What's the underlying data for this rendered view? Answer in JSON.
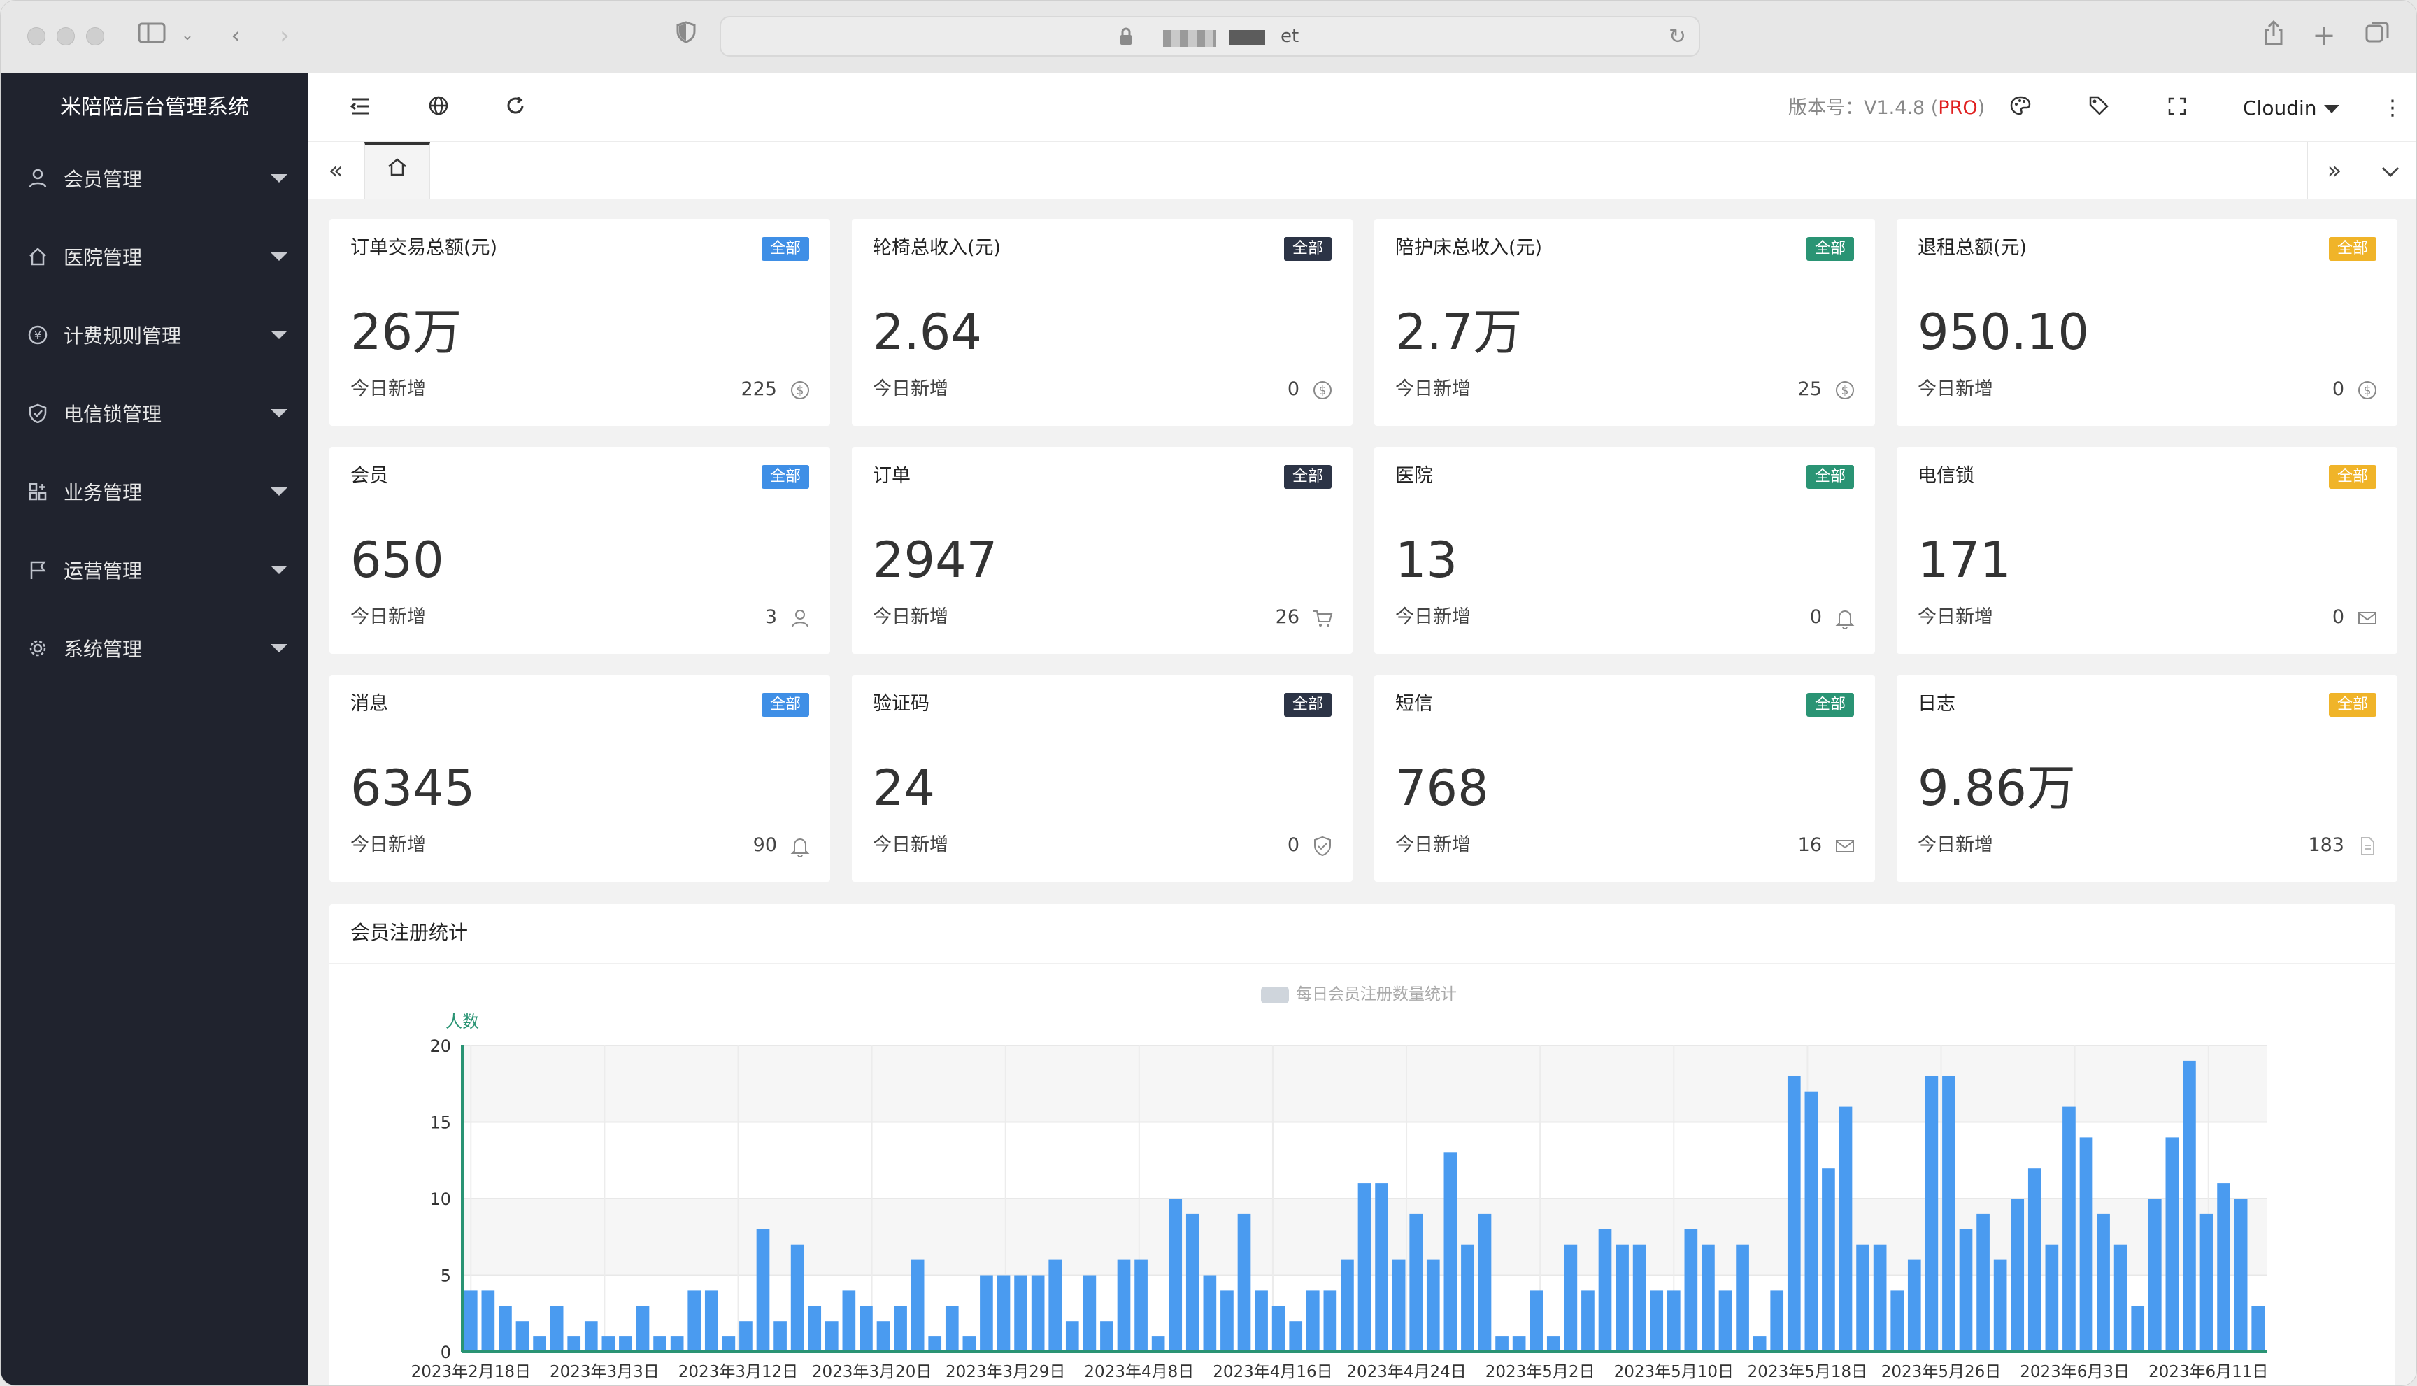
{
  "browser": {
    "url_visible": "et"
  },
  "sidebar": {
    "title": "米陪陪后台管理系统",
    "items": [
      {
        "label": "会员管理",
        "icon": "user-icon"
      },
      {
        "label": "医院管理",
        "icon": "home-icon"
      },
      {
        "label": "计费规则管理",
        "icon": "yen-icon"
      },
      {
        "label": "电信锁管理",
        "icon": "shield-icon"
      },
      {
        "label": "业务管理",
        "icon": "grid-icon"
      },
      {
        "label": "运营管理",
        "icon": "flag-icon"
      },
      {
        "label": "系统管理",
        "icon": "gear-icon"
      }
    ]
  },
  "header": {
    "version_label": "版本号：V1.4.8 (",
    "version_pro": "PRO",
    "version_close": ")",
    "user": "Cloudin"
  },
  "cards": [
    {
      "title": "订单交易总额(元)",
      "badge": "全部",
      "badge_color": "#3f8fe6",
      "value": "26万",
      "sub": "今日新增",
      "count": "225",
      "icon": "dollar-icon"
    },
    {
      "title": "轮椅总收入(元)",
      "badge": "全部",
      "badge_color": "#2c3446",
      "value": "2.64",
      "sub": "今日新增",
      "count": "0",
      "icon": "dollar-icon"
    },
    {
      "title": "陪护床总收入(元)",
      "badge": "全部",
      "badge_color": "#2a9474",
      "value": "2.7万",
      "sub": "今日新增",
      "count": "25",
      "icon": "dollar-icon"
    },
    {
      "title": "退租总额(元)",
      "badge": "全部",
      "badge_color": "#f0b429",
      "value": "950.10",
      "sub": "今日新增",
      "count": "0",
      "icon": "dollar-icon"
    },
    {
      "title": "会员",
      "badge": "全部",
      "badge_color": "#3f8fe6",
      "value": "650",
      "sub": "今日新增",
      "count": "3",
      "icon": "user-icon"
    },
    {
      "title": "订单",
      "badge": "全部",
      "badge_color": "#2c3446",
      "value": "2947",
      "sub": "今日新增",
      "count": "26",
      "icon": "cart-icon"
    },
    {
      "title": "医院",
      "badge": "全部",
      "badge_color": "#2a9474",
      "value": "13",
      "sub": "今日新增",
      "count": "0",
      "icon": "bell-icon"
    },
    {
      "title": "电信锁",
      "badge": "全部",
      "badge_color": "#f0b429",
      "value": "171",
      "sub": "今日新增",
      "count": "0",
      "icon": "mail-icon"
    },
    {
      "title": "消息",
      "badge": "全部",
      "badge_color": "#3f8fe6",
      "value": "6345",
      "sub": "今日新增",
      "count": "90",
      "icon": "bell-icon"
    },
    {
      "title": "验证码",
      "badge": "全部",
      "badge_color": "#2c3446",
      "value": "24",
      "sub": "今日新增",
      "count": "0",
      "icon": "shield-check-icon"
    },
    {
      "title": "短信",
      "badge": "全部",
      "badge_color": "#2a9474",
      "value": "768",
      "sub": "今日新增",
      "count": "16",
      "icon": "mail-icon"
    },
    {
      "title": "日志",
      "badge": "全部",
      "badge_color": "#f0b429",
      "value": "9.86万",
      "sub": "今日新增",
      "count": "183",
      "icon": "document-icon"
    }
  ],
  "panel": {
    "title": "会员注册统计"
  },
  "chart_data": {
    "type": "bar",
    "legend": "每日会员注册数量统计",
    "legend_position": "top-center",
    "ylabel": "人数",
    "ylim": [
      0,
      20
    ],
    "yticks": [
      0,
      5,
      10,
      15,
      20
    ],
    "grid": true,
    "bar_color": "#4a9bf0",
    "x_tick_labels": [
      "2023年2月18日",
      "2023年3月3日",
      "2023年3月12日",
      "2023年3月20日",
      "2023年3月29日",
      "2023年4月8日",
      "2023年4月16日",
      "2023年4月24日",
      "2023年5月2日",
      "2023年5月10日",
      "2023年5月18日",
      "2023年5月26日",
      "2023年6月3日",
      "2023年6月11日"
    ],
    "values": [
      4,
      4,
      3,
      2,
      1,
      3,
      1,
      2,
      1,
      1,
      3,
      1,
      1,
      4,
      4,
      1,
      2,
      8,
      2,
      7,
      3,
      2,
      4,
      3,
      2,
      3,
      6,
      1,
      3,
      1,
      5,
      5,
      5,
      5,
      6,
      2,
      5,
      2,
      6,
      6,
      1,
      10,
      9,
      5,
      4,
      9,
      4,
      3,
      2,
      4,
      4,
      6,
      11,
      11,
      6,
      9,
      6,
      13,
      7,
      9,
      1,
      1,
      4,
      1,
      7,
      4,
      8,
      7,
      7,
      4,
      4,
      8,
      7,
      4,
      7,
      1,
      4,
      18,
      17,
      12,
      16,
      7,
      7,
      4,
      6,
      18,
      18,
      8,
      9,
      6,
      10,
      12,
      7,
      16,
      14,
      9,
      7,
      3,
      10,
      14,
      19,
      9,
      11,
      10,
      3
    ]
  }
}
